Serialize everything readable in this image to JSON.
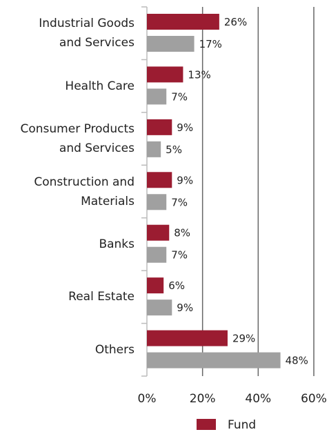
{
  "chart_data": {
    "type": "bar",
    "orientation": "horizontal",
    "categories": [
      "Industrial Goods\nand Services",
      "Health Care",
      "Consumer Products\nand Services",
      "Construction and\nMaterials",
      "Banks",
      "Real Estate",
      "Others"
    ],
    "series": [
      {
        "name": "Fund",
        "color": "#9b1c31",
        "values": [
          26,
          13,
          9,
          9,
          8,
          6,
          29
        ],
        "value_labels": [
          "26%",
          "13%",
          "9%",
          "9%",
          "8%",
          "6%",
          "29%"
        ]
      },
      {
        "color": "#a0a0a0",
        "values": [
          17,
          7,
          5,
          7,
          7,
          9,
          48
        ],
        "value_labels": [
          "17%",
          "7%",
          "5%",
          "7%",
          "7%",
          "9%",
          "48%"
        ]
      }
    ],
    "xlim": [
      0,
      60
    ],
    "xticks": [
      {
        "value": 0,
        "label": "0%"
      },
      {
        "value": 20,
        "label": "20%"
      },
      {
        "value": 40,
        "label": "40%"
      },
      {
        "value": 60,
        "label": "60%"
      }
    ],
    "grid": true,
    "legend": "bottom"
  }
}
